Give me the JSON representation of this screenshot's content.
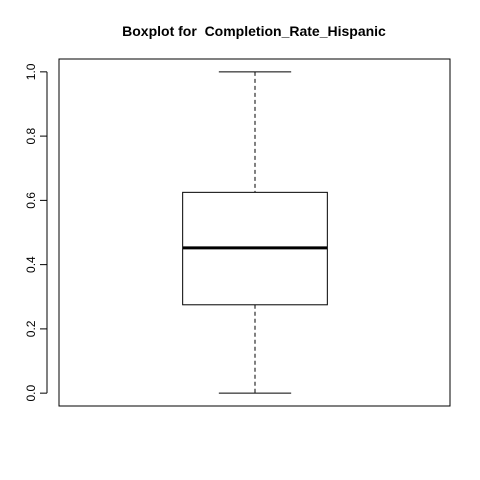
{
  "chart_data": {
    "type": "boxplot",
    "title": "Boxplot for  Completion_Rate_Hispanic",
    "xlabel": "",
    "ylabel": "",
    "ylim": [
      -0.04,
      1.04
    ],
    "yticks": [
      0.0,
      0.2,
      0.4,
      0.6,
      0.8,
      1.0
    ],
    "ytick_labels": [
      "0.0",
      "0.2",
      "0.4",
      "0.6",
      "0.8",
      "1.0"
    ],
    "boxes": [
      {
        "whisker_low": 0.0,
        "q1": 0.275,
        "median": 0.452,
        "q3": 0.625,
        "whisker_high": 1.0
      }
    ],
    "grid": false,
    "box_color": "#ffffff",
    "line_color": "#000000"
  }
}
